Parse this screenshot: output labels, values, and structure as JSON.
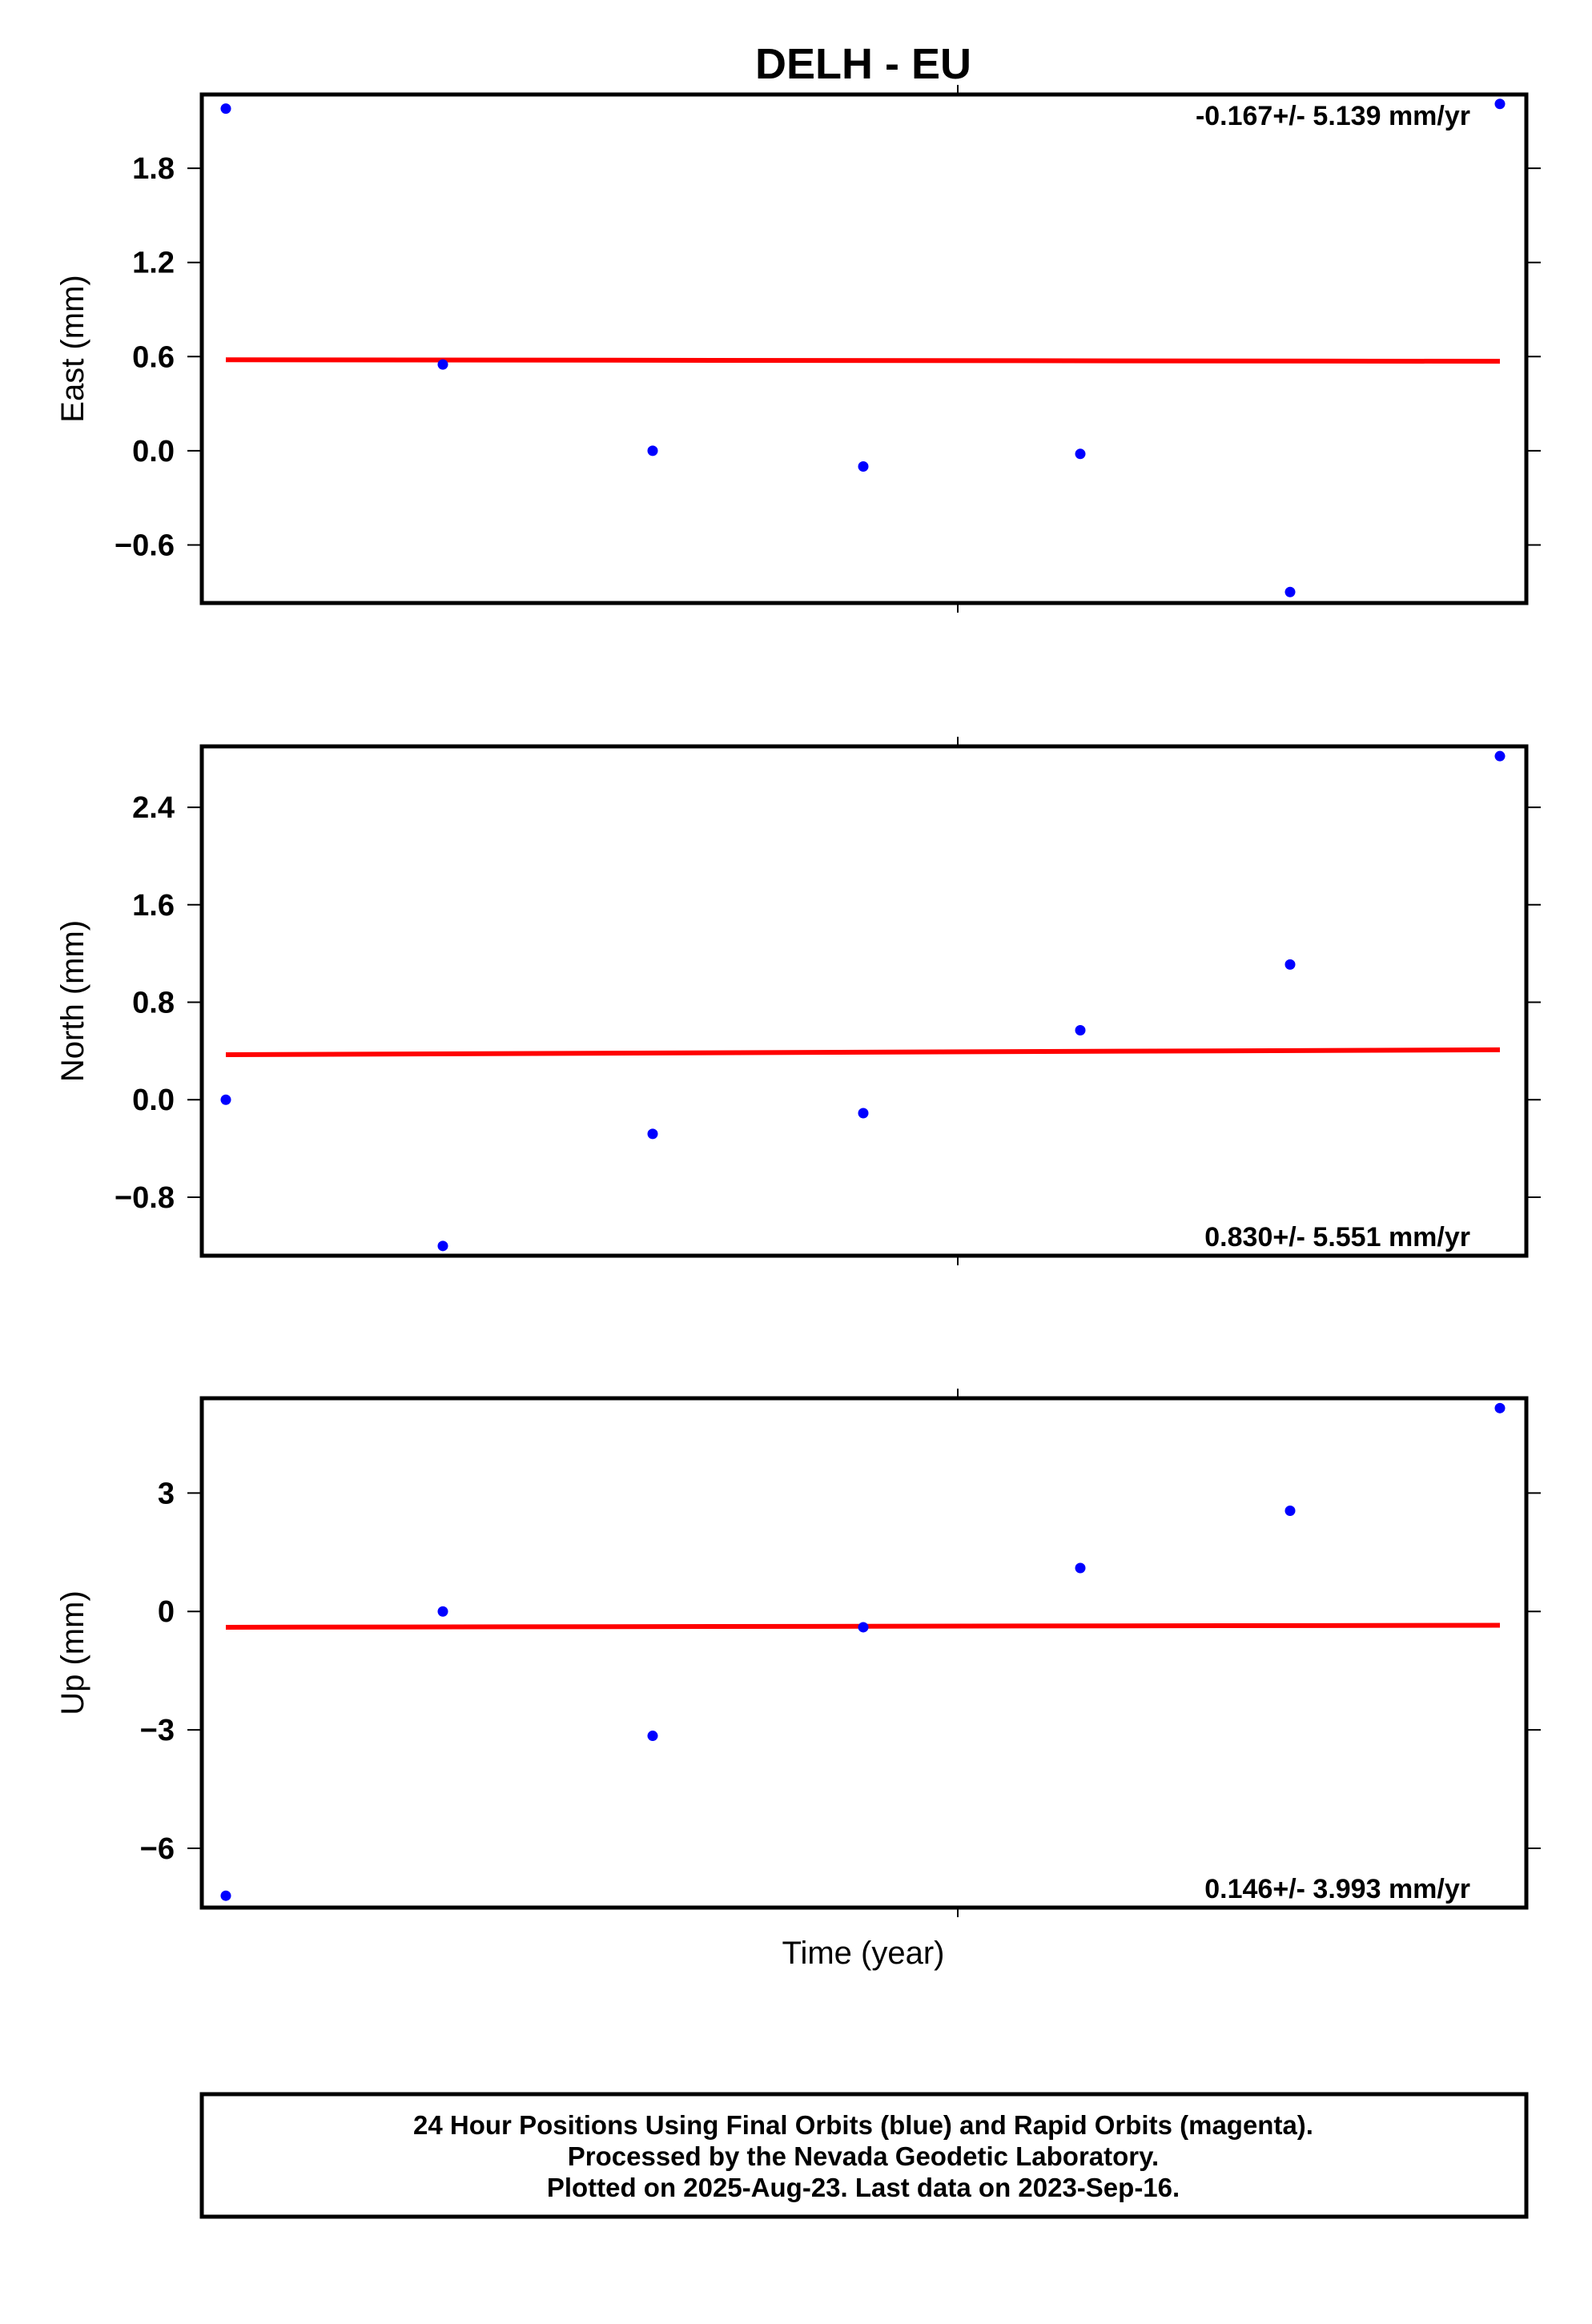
{
  "figure": {
    "title": "DELH - EU",
    "xlabel": "Time (year)",
    "footer": {
      "lines": [
        "24 Hour Positions Using Final Orbits (blue) and Rapid Orbits (magenta).",
        "Processed by the Nevada Geodetic Laboratory.",
        "Plotted on 2025-Aug-23. Last data on 2023-Sep-16."
      ]
    },
    "colors": {
      "points": "#0000ff",
      "fit_line": "#ff0000",
      "frame": "#000000"
    }
  },
  "chart_data": [
    {
      "type": "scatter",
      "title": "DELH - EU",
      "ylabel": "East (mm)",
      "xlabel": "",
      "ylim": [
        -0.97,
        2.27
      ],
      "yticks": [
        -0.6,
        0.0,
        0.6,
        1.2,
        1.8
      ],
      "ytick_labels": [
        "−0.6",
        "0.0",
        "0.6",
        "1.2",
        "1.8"
      ],
      "rate_text": "-0.167+/- 5.139 mm/yr",
      "rate_position": "top-right",
      "x": [
        1,
        2,
        3,
        4,
        5,
        6,
        7
      ],
      "y": [
        2.18,
        0.55,
        0.0,
        -0.1,
        -0.02,
        -0.9,
        2.21
      ],
      "fit": {
        "y_start": 0.58,
        "y_end": 0.57
      },
      "grid": false
    },
    {
      "type": "scatter",
      "ylabel": "North (mm)",
      "xlabel": "",
      "ylim": [
        -1.28,
        2.9
      ],
      "yticks": [
        -0.8,
        0.0,
        0.8,
        1.6,
        2.4
      ],
      "ytick_labels": [
        "−0.8",
        "0.0",
        "0.8",
        "1.6",
        "2.4"
      ],
      "rate_text": "0.830+/- 5.551 mm/yr",
      "rate_position": "bottom-right",
      "x": [
        1,
        2,
        3,
        4,
        5,
        6,
        7
      ],
      "y": [
        0.0,
        -1.2,
        -0.28,
        -0.11,
        0.57,
        1.11,
        2.82
      ],
      "fit": {
        "y_start": 0.37,
        "y_end": 0.41
      },
      "grid": false
    },
    {
      "type": "scatter",
      "ylabel": "Up (mm)",
      "xlabel": "Time (year)",
      "ylim": [
        -7.5,
        5.4
      ],
      "yticks": [
        -6,
        -3,
        0,
        3
      ],
      "ytick_labels": [
        "−6",
        "−3",
        "0",
        "3"
      ],
      "rate_text": "0.146+/- 3.993 mm/yr",
      "rate_position": "bottom-right",
      "x": [
        1,
        2,
        3,
        4,
        5,
        6,
        7
      ],
      "y": [
        -7.2,
        0.0,
        -3.15,
        -0.4,
        1.1,
        2.55,
        5.15
      ],
      "fit": {
        "y_start": -0.4,
        "y_end": -0.35
      },
      "grid": false
    }
  ]
}
